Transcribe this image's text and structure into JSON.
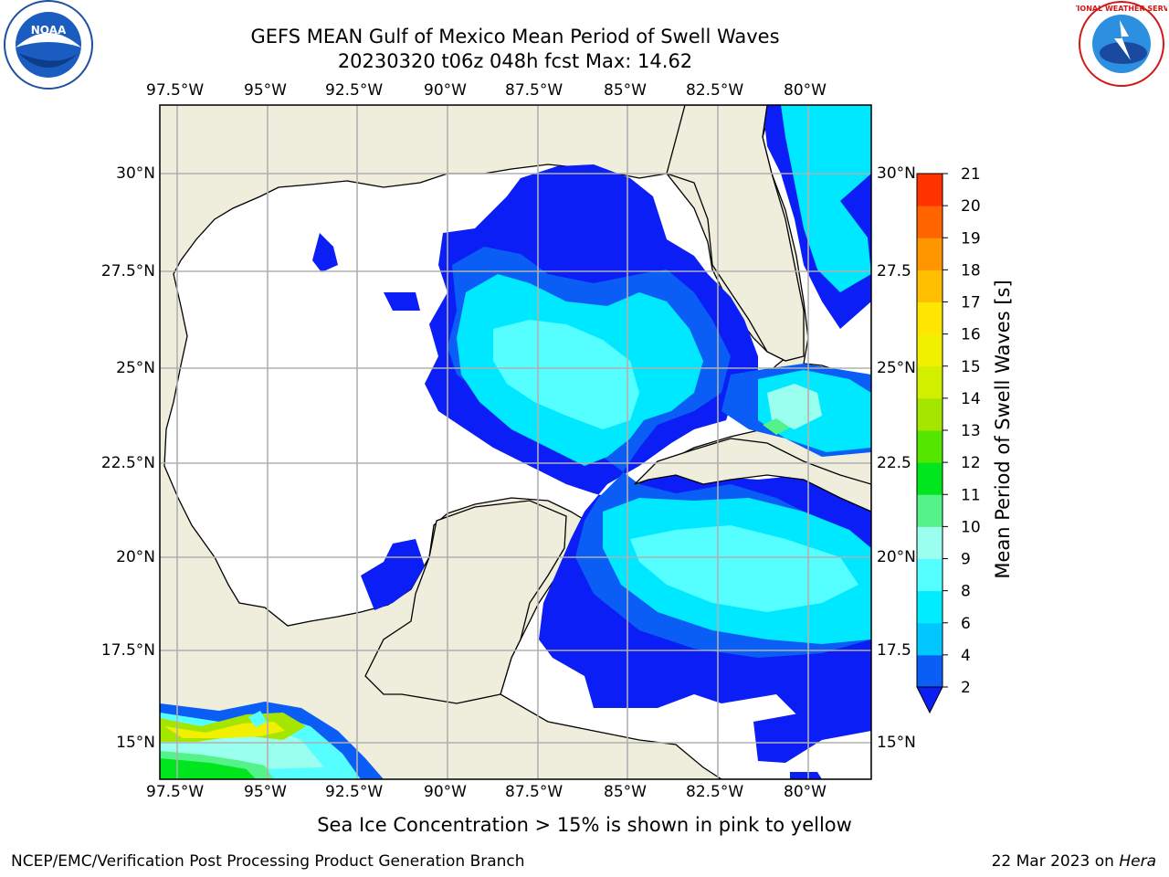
{
  "title": {
    "line1": "GEFS MEAN Gulf of Mexico Mean Period of Swell Waves",
    "line2": "20230320 t06z 048h fcst   Max: 14.62"
  },
  "logos": {
    "noara": "NOAA",
    "nws": "NATIONAL WEATHER SERVICE"
  },
  "map": {
    "lon_ticks": [
      "97.5°W",
      "95°W",
      "92.5°W",
      "90°W",
      "87.5°W",
      "85°W",
      "82.5°W",
      "80°W"
    ],
    "lat_ticks_left": [
      "30°N",
      "27.5°N",
      "25°N",
      "22.5°N",
      "20°N",
      "17.5°N",
      "15°N"
    ],
    "lat_ticks_right": [
      "30°N",
      "27.5",
      "25°N",
      "22.5",
      "20°N",
      "17.5",
      "15°N"
    ],
    "colors": {
      "land": "#efeddc",
      "sea": "#ffffff",
      "grid": "#b0b0b0"
    }
  },
  "colorbar": {
    "label": "Mean Period of Swell Waves [s]",
    "ticks": [
      "2",
      "4",
      "6",
      "8",
      "9",
      "10",
      "11",
      "12",
      "13",
      "14",
      "15",
      "16",
      "17",
      "18",
      "19",
      "20",
      "21"
    ],
    "colors": [
      "#0a5ef5",
      "#00c8ff",
      "#00ecff",
      "#55ffff",
      "#9bfff0",
      "#55f28a",
      "#00e61e",
      "#55e600",
      "#a5e600",
      "#d0f000",
      "#f0f000",
      "#ffe600",
      "#ffbe00",
      "#ff9600",
      "#ff6400",
      "#ff3200",
      "#ff0000"
    ]
  },
  "subtitle": "Sea Ice Concentration > 15% is shown in pink to yellow",
  "footer": {
    "left": "NCEP/EMC/Verification Post Processing Product Generation Branch",
    "right_date": "22 Mar 2023 on ",
    "right_host": "Hera"
  }
}
